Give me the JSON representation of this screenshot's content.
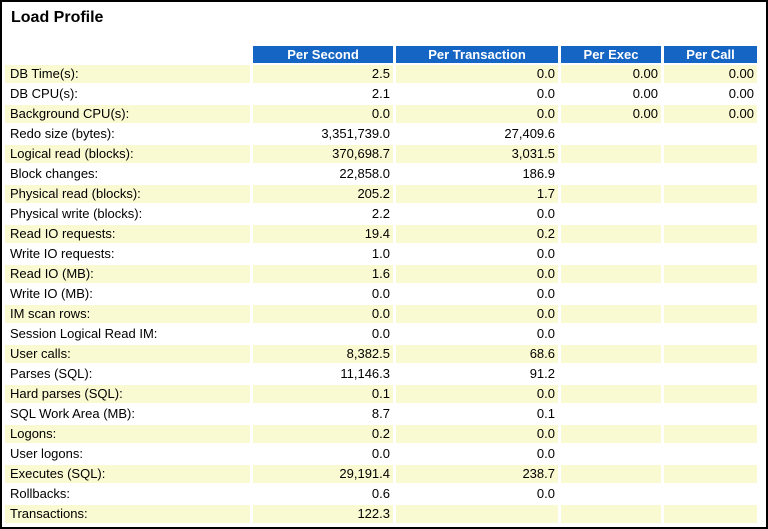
{
  "page": {
    "title": "Load Profile"
  },
  "colors": {
    "header_bg": "#1565c4",
    "header_text": "#ffffff",
    "row_alt_bg": "#fafad2",
    "row_bg": "#ffffff",
    "border": "#000000"
  },
  "table": {
    "columns": [
      "Per Second",
      "Per Transaction",
      "Per Exec",
      "Per Call"
    ],
    "rows": [
      {
        "label": "DB Time(s):",
        "values": [
          "2.5",
          "0.0",
          "0.00",
          "0.00"
        ]
      },
      {
        "label": "DB CPU(s):",
        "values": [
          "2.1",
          "0.0",
          "0.00",
          "0.00"
        ]
      },
      {
        "label": "Background CPU(s):",
        "values": [
          "0.0",
          "0.0",
          "0.00",
          "0.00"
        ]
      },
      {
        "label": "Redo size (bytes):",
        "values": [
          "3,351,739.0",
          "27,409.6",
          "",
          ""
        ]
      },
      {
        "label": "Logical read (blocks):",
        "values": [
          "370,698.7",
          "3,031.5",
          "",
          ""
        ]
      },
      {
        "label": "Block changes:",
        "values": [
          "22,858.0",
          "186.9",
          "",
          ""
        ]
      },
      {
        "label": "Physical read (blocks):",
        "values": [
          "205.2",
          "1.7",
          "",
          ""
        ]
      },
      {
        "label": "Physical write (blocks):",
        "values": [
          "2.2",
          "0.0",
          "",
          ""
        ]
      },
      {
        "label": "Read IO requests:",
        "values": [
          "19.4",
          "0.2",
          "",
          ""
        ]
      },
      {
        "label": "Write IO requests:",
        "values": [
          "1.0",
          "0.0",
          "",
          ""
        ]
      },
      {
        "label": "Read IO (MB):",
        "values": [
          "1.6",
          "0.0",
          "",
          ""
        ]
      },
      {
        "label": "Write IO (MB):",
        "values": [
          "0.0",
          "0.0",
          "",
          ""
        ]
      },
      {
        "label": "IM scan rows:",
        "values": [
          "0.0",
          "0.0",
          "",
          ""
        ]
      },
      {
        "label": "Session Logical Read IM:",
        "values": [
          "0.0",
          "0.0",
          "",
          ""
        ]
      },
      {
        "label": "User calls:",
        "values": [
          "8,382.5",
          "68.6",
          "",
          ""
        ]
      },
      {
        "label": "Parses (SQL):",
        "values": [
          "11,146.3",
          "91.2",
          "",
          ""
        ]
      },
      {
        "label": "Hard parses (SQL):",
        "values": [
          "0.1",
          "0.0",
          "",
          ""
        ]
      },
      {
        "label": "SQL Work Area (MB):",
        "values": [
          "8.7",
          "0.1",
          "",
          ""
        ]
      },
      {
        "label": "Logons:",
        "values": [
          "0.2",
          "0.0",
          "",
          ""
        ]
      },
      {
        "label": "User logons:",
        "values": [
          "0.0",
          "0.0",
          "",
          ""
        ]
      },
      {
        "label": "Executes (SQL):",
        "values": [
          "29,191.4",
          "238.7",
          "",
          ""
        ]
      },
      {
        "label": "Rollbacks:",
        "values": [
          "0.6",
          "0.0",
          "",
          ""
        ]
      },
      {
        "label": "Transactions:",
        "values": [
          "122.3",
          "",
          "",
          ""
        ]
      }
    ]
  }
}
